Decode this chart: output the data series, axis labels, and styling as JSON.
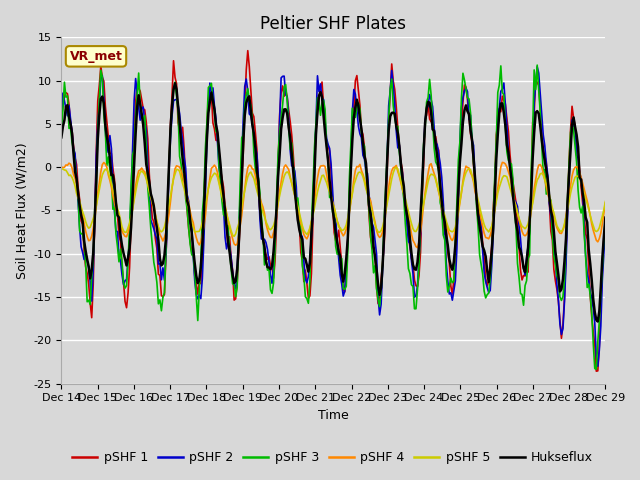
{
  "title": "Peltier SHF Plates",
  "ylabel": "Soil Heat Flux (W/m2)",
  "xlabel": "Time",
  "annotation": "VR_met",
  "ylim": [
    -25,
    15
  ],
  "yticks": [
    -25,
    -20,
    -15,
    -10,
    -5,
    0,
    5,
    10,
    15
  ],
  "xtick_labels": [
    "Dec 14",
    "Dec 15",
    "Dec 16",
    "Dec 17",
    "Dec 18",
    "Dec 19",
    "Dec 20",
    "Dec 21",
    "Dec 22",
    "Dec 23",
    "Dec 24",
    "Dec 25",
    "Dec 26",
    "Dec 27",
    "Dec 28",
    "Dec 29"
  ],
  "series_colors": [
    "#cc0000",
    "#0000cc",
    "#00bb00",
    "#ff8800",
    "#cccc00",
    "#000000"
  ],
  "series_names": [
    "pSHF 1",
    "pSHF 2",
    "pSHF 3",
    "pSHF 4",
    "pSHF 5",
    "Hukseflux"
  ],
  "series_linewidths": [
    1.2,
    1.2,
    1.2,
    1.2,
    1.2,
    1.8
  ],
  "background_color": "#d8d8d8",
  "plot_bg_color": "#d8d8d8",
  "title_fontsize": 12,
  "axis_fontsize": 9,
  "tick_fontsize": 8,
  "legend_fontsize": 9,
  "n_points": 360
}
